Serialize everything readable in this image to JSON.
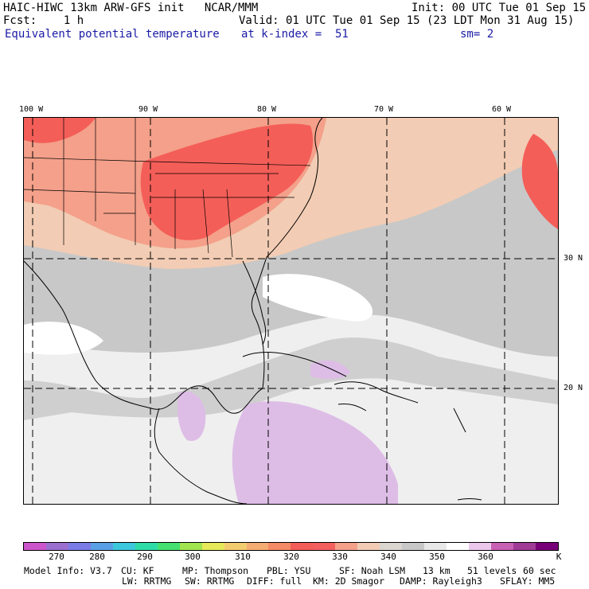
{
  "header": {
    "line1_left": "HAIC-HIWC 13km ARW-GFS init   NCAR/MMM",
    "line1_right": "Init: 00 UTC Tue 01 Sep 15",
    "line2_left": "Fcst:    1 h",
    "line2_right": "Valid: 01 UTC Tue 01 Sep 15 (23 LDT Mon 31 Aug 15)",
    "line3_field": "Equivalent potential temperature",
    "line3_level": "at k-index =  51",
    "line3_sm": "sm= 2"
  },
  "map": {
    "lon_ticks": [
      "100 W",
      "90 W",
      "80 W",
      "70 W",
      "60 W"
    ],
    "lat_ticks": [
      "30 N",
      "20 N"
    ]
  },
  "colorbar": {
    "colors": [
      "#cc55cc",
      "#9a6fd0",
      "#7b7be8",
      "#5aa0e6",
      "#3cc8dc",
      "#2edca8",
      "#46e070",
      "#a0e450",
      "#e6ea5a",
      "#f4cc70",
      "#f4ac72",
      "#f48a66",
      "#f45e58",
      "#f46060",
      "#f4a08a",
      "#f2ccb4",
      "#dcd6d0",
      "#c8c8c8",
      "#e8e8e8",
      "#ffffff",
      "#ecc8ec",
      "#c860b4",
      "#a03c96",
      "#780078"
    ],
    "labels": [
      "270",
      "280",
      "290",
      "300",
      "310",
      "320",
      "330",
      "340",
      "350",
      "360"
    ],
    "unit": "K"
  },
  "footer": {
    "line1": [
      "Model Info: V3.7",
      "CU: KF",
      "MP: Thompson",
      "PBL: YSU",
      "SF: Noah LSM",
      "13 km",
      "51 levels",
      "60 sec"
    ],
    "line2": [
      "LW: RRTMG",
      "SW: RRTMG",
      "DIFF: full",
      "KM: 2D Smagor",
      "DAMP: Rayleigh3",
      "SFLAY: MM5"
    ]
  }
}
